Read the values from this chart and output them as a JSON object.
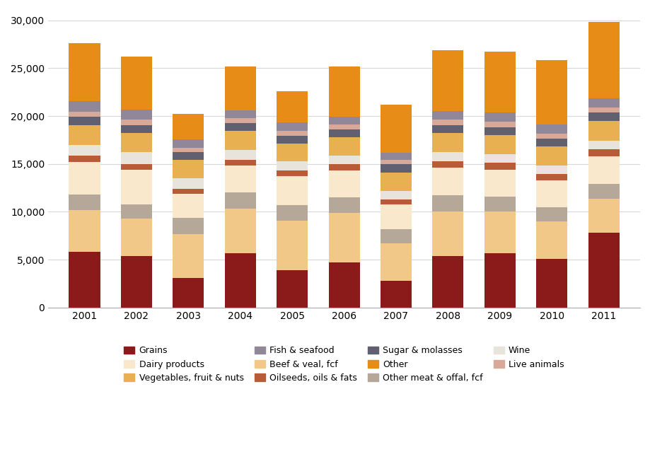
{
  "years": [
    2001,
    2002,
    2003,
    2004,
    2005,
    2006,
    2007,
    2008,
    2009,
    2010,
    2011
  ],
  "stack_order": [
    "Grains",
    "Beef & veal, fcf",
    "Other meat & offal, fcf",
    "Dairy products",
    "Oilseeds, oils & fats",
    "Wine",
    "Vegetables, fruit & nuts",
    "Sugar & molasses",
    "Live animals",
    "Fish & seafood",
    "Other"
  ],
  "colors": {
    "Grains": "#8B1A1A",
    "Beef & veal, fcf": "#F2C888",
    "Other meat & offal, fcf": "#B5A898",
    "Dairy products": "#FAE8CC",
    "Oilseeds, oils & fats": "#B85C38",
    "Wine": "#E8E4DC",
    "Vegetables, fruit & nuts": "#E8B050",
    "Sugar & molasses": "#606070",
    "Live animals": "#D8A898",
    "Fish & seafood": "#908898",
    "Other": "#E88C18"
  },
  "data": {
    "Grains": [
      5800,
      5400,
      3100,
      5700,
      3900,
      4700,
      2800,
      5400,
      5700,
      5100,
      7800
    ],
    "Beef & veal, fcf": [
      4400,
      3900,
      4600,
      4600,
      5200,
      5200,
      3900,
      4600,
      4300,
      3900,
      3600
    ],
    "Other meat & offal, fcf": [
      1600,
      1500,
      1700,
      1700,
      1600,
      1600,
      1500,
      1700,
      1600,
      1500,
      1500
    ],
    "Dairy products": [
      3400,
      3600,
      2500,
      2800,
      3000,
      2800,
      2600,
      2900,
      2800,
      2800,
      2900
    ],
    "Oilseeds, oils & fats": [
      650,
      600,
      500,
      650,
      650,
      700,
      500,
      700,
      700,
      650,
      700
    ],
    "Wine": [
      1100,
      1200,
      1100,
      1000,
      900,
      900,
      900,
      900,
      900,
      900,
      900
    ],
    "Vegetables, fruit & nuts": [
      2100,
      2000,
      1900,
      2000,
      1900,
      1900,
      1900,
      2000,
      2000,
      1950,
      2100
    ],
    "Sugar & molasses": [
      850,
      850,
      800,
      800,
      800,
      800,
      850,
      850,
      850,
      850,
      850
    ],
    "Live animals": [
      550,
      550,
      500,
      500,
      500,
      500,
      450,
      550,
      550,
      500,
      550
    ],
    "Fish & seafood": [
      1100,
      1050,
      850,
      850,
      900,
      850,
      750,
      950,
      950,
      950,
      950
    ],
    "Other": [
      6050,
      5550,
      2650,
      4600,
      3250,
      5250,
      5050,
      6350,
      6350,
      6700,
      7950
    ]
  },
  "ylim": [
    0,
    31000
  ],
  "yticks": [
    0,
    5000,
    10000,
    15000,
    20000,
    25000,
    30000
  ],
  "background_color": "#ffffff",
  "grid_color": "#d8d8d8",
  "legend_order": [
    "Grains",
    "Dairy products",
    "Vegetables, fruit & nuts",
    "Fish & seafood",
    "Beef & veal, fcf",
    "Oilseeds, oils & fats",
    "Sugar & molasses",
    "Other",
    "Other meat & offal, fcf",
    "Wine",
    "Live animals"
  ]
}
